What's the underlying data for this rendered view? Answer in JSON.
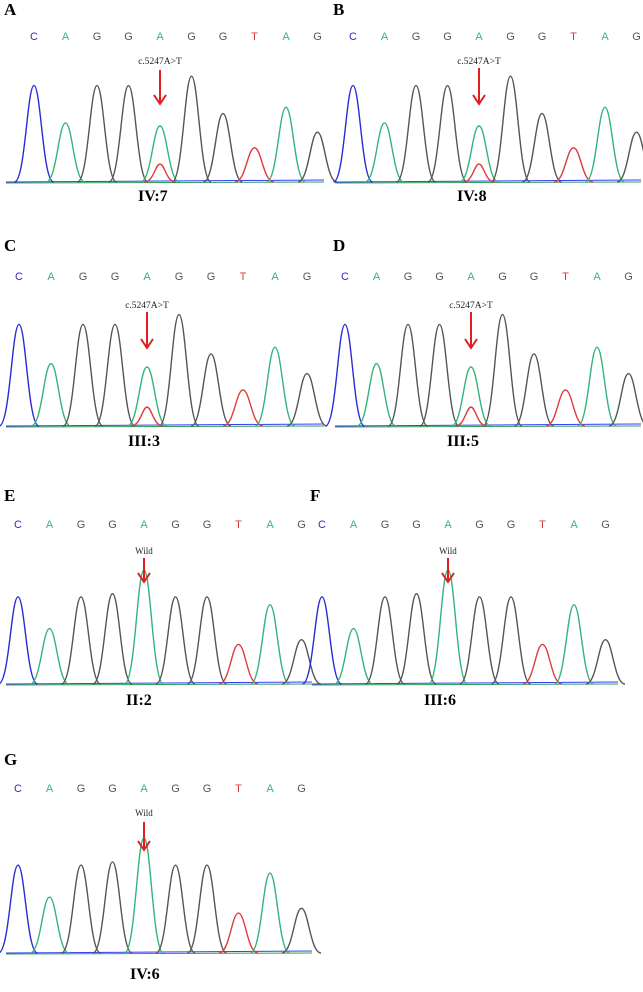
{
  "base_colors": {
    "C": "#2b2bd6",
    "A": "#33b57a",
    "G": "#555555",
    "T": "#e03a3a",
    "arrow": "#e02020",
    "baseline_blue": "#3a3aff",
    "baseline_green": "#2fa05a"
  },
  "sequence": [
    "C",
    "A",
    "G",
    "G",
    "A",
    "G",
    "G",
    "T",
    "A",
    "G"
  ],
  "panels": [
    {
      "letter": "A",
      "sample": "IV:7",
      "annotation": "c.5247A>T",
      "mutant": true
    },
    {
      "letter": "B",
      "sample": "IV:8",
      "annotation": "c.5247A>T",
      "mutant": true
    },
    {
      "letter": "C",
      "sample": "III:3",
      "annotation": "c.5247A>T",
      "mutant": true
    },
    {
      "letter": "D",
      "sample": "III:5",
      "annotation": "c.5247A>T",
      "mutant": true
    },
    {
      "letter": "E",
      "sample": "II:2",
      "annotation": "Wild",
      "mutant": false
    },
    {
      "letter": "F",
      "sample": "III:6",
      "annotation": "Wild",
      "mutant": false
    },
    {
      "letter": "G",
      "sample": "IV:6",
      "annotation": "Wild",
      "mutant": false
    }
  ]
}
